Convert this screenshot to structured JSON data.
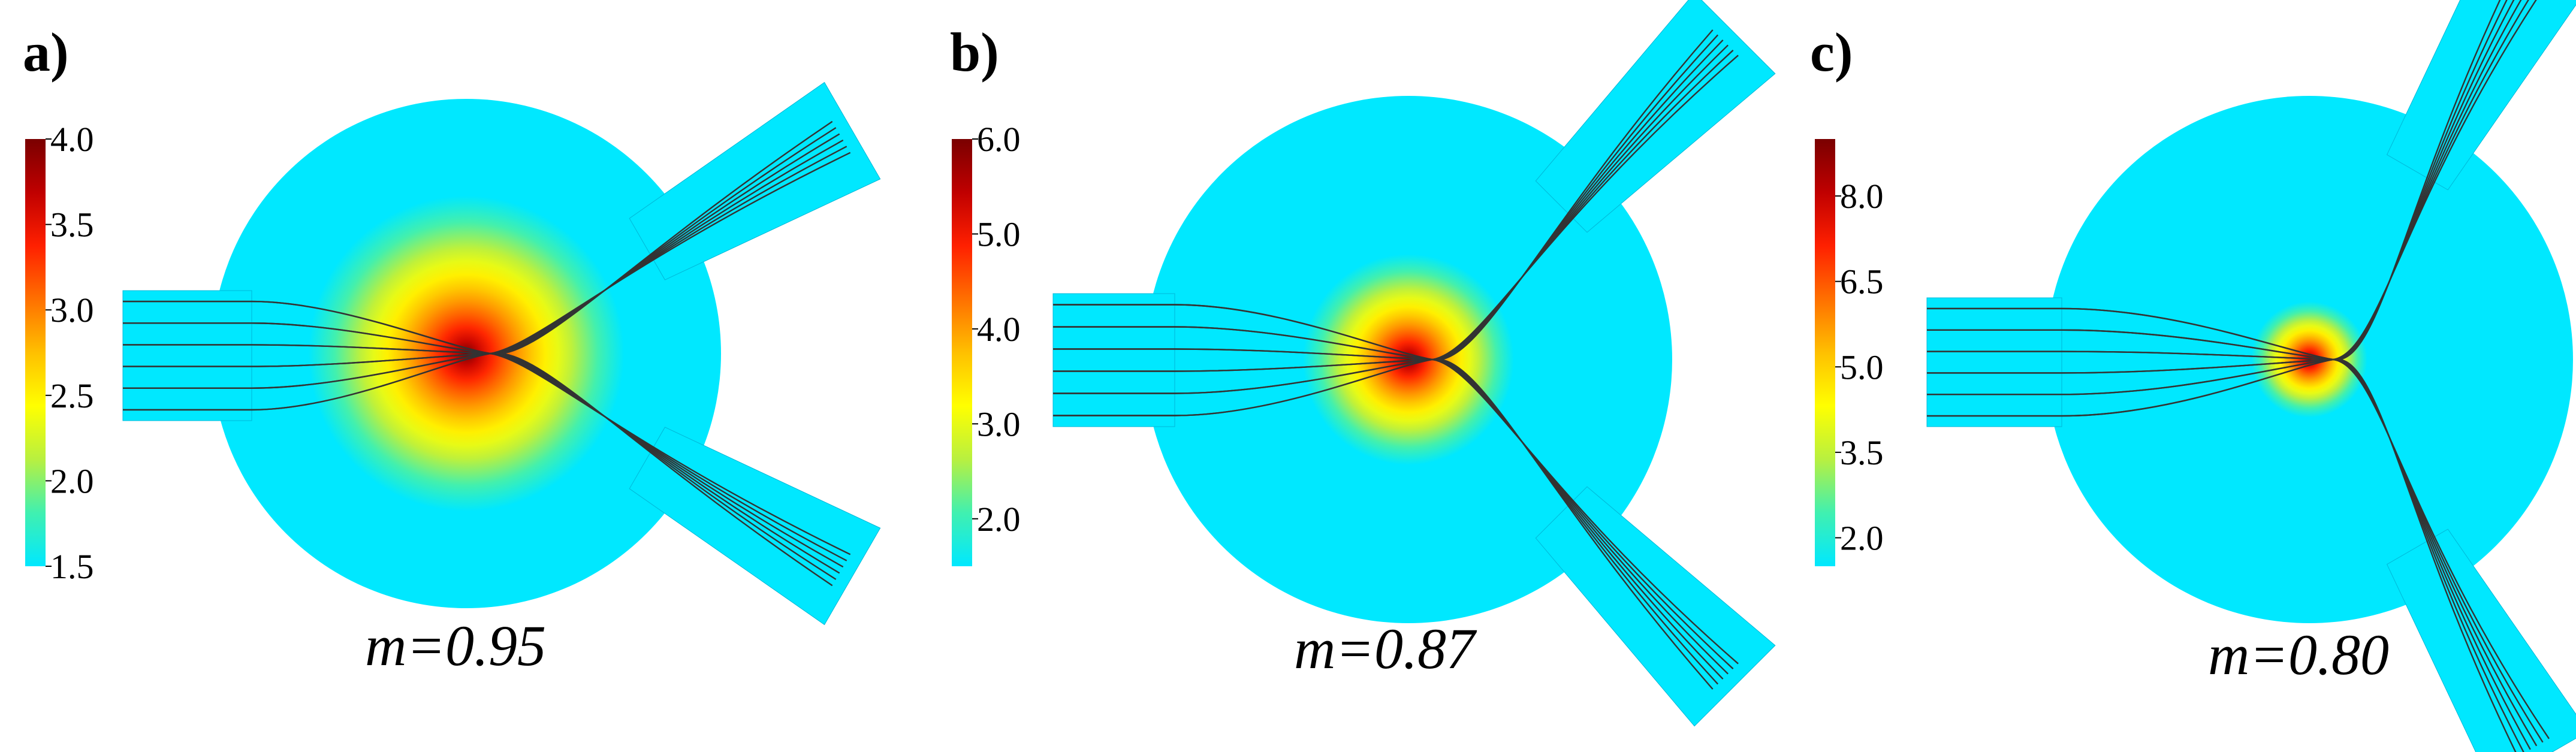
{
  "panels": [
    {
      "label": "a)",
      "m_label": "m=0.95",
      "colorbar": {
        "min": 1.5,
        "max": 4.0,
        "ticks": [
          "4.0",
          "3.5",
          "3.0",
          "2.5",
          "2.0",
          "1.5"
        ],
        "tick_values": [
          4.0,
          3.5,
          3.0,
          2.5,
          2.0,
          1.5
        ]
      },
      "branch_angle_deg": 30
    },
    {
      "label": "b)",
      "m_label": "m=0.87",
      "colorbar": {
        "min": 1.5,
        "max": 6.0,
        "ticks": [
          "6.0",
          "5.0",
          "4.0",
          "3.0",
          "2.0"
        ],
        "tick_values": [
          6.0,
          5.0,
          4.0,
          3.0,
          2.0
        ]
      },
      "branch_angle_deg": 45
    },
    {
      "label": "c)",
      "m_label": "m=0.80",
      "colorbar": {
        "min": 1.5,
        "max": 9.0,
        "ticks": [
          "8.0",
          "6.5",
          "5.0",
          "3.5",
          "2.0"
        ],
        "tick_values": [
          8.0,
          6.5,
          5.0,
          3.5,
          2.0
        ]
      },
      "branch_angle_deg": 60
    }
  ],
  "colors": {
    "waveguide": "#00e8ff",
    "lens_edge": "#1ee6ff",
    "ray": "#333333",
    "colormap": [
      "#00e8ff",
      "#40f0b0",
      "#b8f040",
      "#ffff00",
      "#ffc000",
      "#ff7000",
      "#ff2000",
      "#c00000",
      "#7a0000"
    ]
  },
  "ray_count": 6
}
